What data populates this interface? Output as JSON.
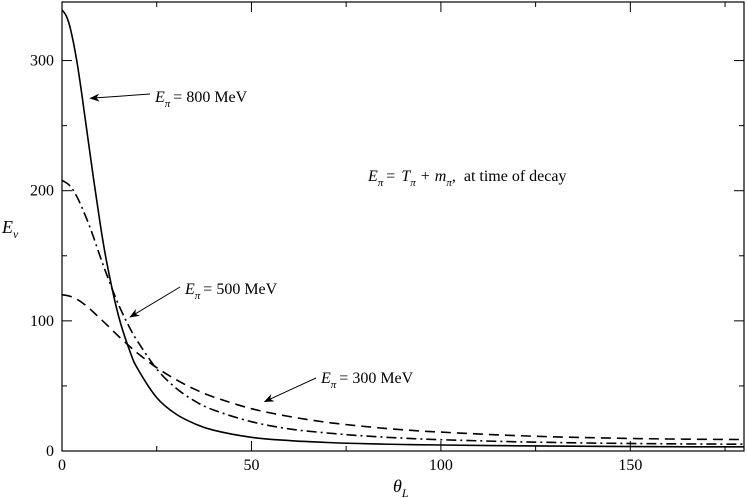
{
  "chart_data": {
    "type": "line",
    "xlabel": {
      "symbol": "θ",
      "sub": "L"
    },
    "ylabel": {
      "symbol": "E",
      "sub": "ν"
    },
    "xlim": [
      0,
      180
    ],
    "ylim": [
      0,
      345
    ],
    "xticks": [
      0,
      50,
      100,
      150
    ],
    "yticks": [
      0,
      100,
      200,
      300
    ],
    "grid": false,
    "series": [
      {
        "style": "solid",
        "x": [
          0,
          1,
          2,
          3,
          4,
          5,
          6,
          8,
          10,
          12,
          15,
          18,
          20,
          25,
          30,
          35,
          40,
          50,
          60,
          70,
          80,
          90,
          100,
          120,
          140,
          160,
          180
        ],
        "y": [
          339,
          335,
          327,
          314,
          298,
          279,
          258,
          216,
          176,
          142,
          103,
          76,
          63,
          41,
          28.5,
          21,
          16,
          10.5,
          8,
          6.5,
          5.6,
          5.0,
          4.6,
          4.0,
          3.6,
          3.3,
          3.2
        ]
      },
      {
        "style": "dashdot",
        "x": [
          0,
          2,
          4,
          6,
          8,
          10,
          12,
          15,
          18,
          20,
          25,
          30,
          35,
          40,
          50,
          60,
          70,
          80,
          90,
          100,
          120,
          140,
          160,
          180
        ],
        "y": [
          208,
          204,
          195,
          182,
          167,
          150,
          134,
          112,
          94,
          84,
          63,
          48.5,
          38.5,
          31.5,
          22.5,
          17,
          13.8,
          11.5,
          9.9,
          8.7,
          7.1,
          6.1,
          5.5,
          5.2
        ]
      },
      {
        "style": "dashed",
        "x": [
          0,
          2,
          4,
          6,
          8,
          10,
          12,
          15,
          18,
          20,
          25,
          30,
          35,
          40,
          50,
          60,
          70,
          80,
          90,
          100,
          120,
          140,
          160,
          180
        ],
        "y": [
          120,
          119,
          116.5,
          112.5,
          107.5,
          102,
          96.5,
          88,
          80,
          75,
          64,
          55,
          47.5,
          41.5,
          32.5,
          26.5,
          22,
          18.8,
          16.3,
          14.5,
          11.8,
          10.2,
          9.2,
          8.8
        ]
      }
    ],
    "annotations": [
      {
        "symbol": "E",
        "sub": "π",
        "text": "= 800 MeV",
        "arrow_to": {
          "x": 7.5,
          "y": 271
        }
      },
      {
        "symbol": "E",
        "sub": "π",
        "text": "= 500 MeV",
        "arrow_to": {
          "x": 18,
          "y": 103
        }
      },
      {
        "symbol": "E",
        "sub": "π",
        "text": "= 300 MeV",
        "arrow_to": {
          "x": 53.5,
          "y": 38
        }
      }
    ],
    "formula": {
      "lhs": "E",
      "lhs_sub": "π",
      "eq": "=",
      "t": "T",
      "t_sub": "π",
      "plus": "+",
      "m": "m",
      "m_sub": "π",
      "rest": ",  at time of decay"
    }
  }
}
